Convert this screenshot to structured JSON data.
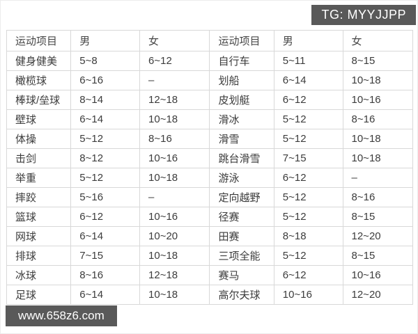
{
  "page": {
    "background_color": "#ffffff",
    "badge_background_color": "#595959",
    "badge_text_color": "#ffffff",
    "table_border_color": "#d8d8d8",
    "table_text_color": "#3c3c3c"
  },
  "top_badge": {
    "text": "TG: MYYJJPP"
  },
  "watermark": {
    "text": "www.658z6.com"
  },
  "table": {
    "headers": [
      "运动项目",
      "男",
      "女",
      "运动项目",
      "男",
      "女"
    ],
    "rows": [
      [
        "健身健美",
        "5~8",
        "6~12",
        "自行车",
        "5~11",
        "8~15"
      ],
      [
        "橄榄球",
        "6~16",
        "–",
        "划船",
        "6~14",
        "10~18"
      ],
      [
        "棒球/垒球",
        "8~14",
        "12~18",
        "皮划艇",
        "6~12",
        "10~16"
      ],
      [
        "壁球",
        "6~14",
        "10~18",
        "滑冰",
        "5~12",
        "8~16"
      ],
      [
        "体操",
        "5~12",
        "8~16",
        "滑雪",
        "5~12",
        "10~18"
      ],
      [
        "击剑",
        "8~12",
        "10~16",
        "跳台滑雪",
        "7~15",
        "10~18"
      ],
      [
        "举重",
        "5~12",
        "10~18",
        "游泳",
        "6~12",
        "–"
      ],
      [
        "摔跤",
        "5~16",
        "–",
        "定向越野",
        "5~12",
        "8~16"
      ],
      [
        "篮球",
        "6~12",
        "10~16",
        "径赛",
        "5~12",
        "8~15"
      ],
      [
        "网球",
        "6~14",
        "10~20",
        "田赛",
        "8~18",
        "12~20"
      ],
      [
        "排球",
        "7~15",
        "10~18",
        "三项全能",
        "5~12",
        "8~15"
      ],
      [
        "冰球",
        "8~16",
        "12~18",
        "赛马",
        "6~12",
        "10~16"
      ],
      [
        "足球",
        "6~14",
        "10~18",
        "高尔夫球",
        "10~16",
        "12~20"
      ]
    ]
  }
}
